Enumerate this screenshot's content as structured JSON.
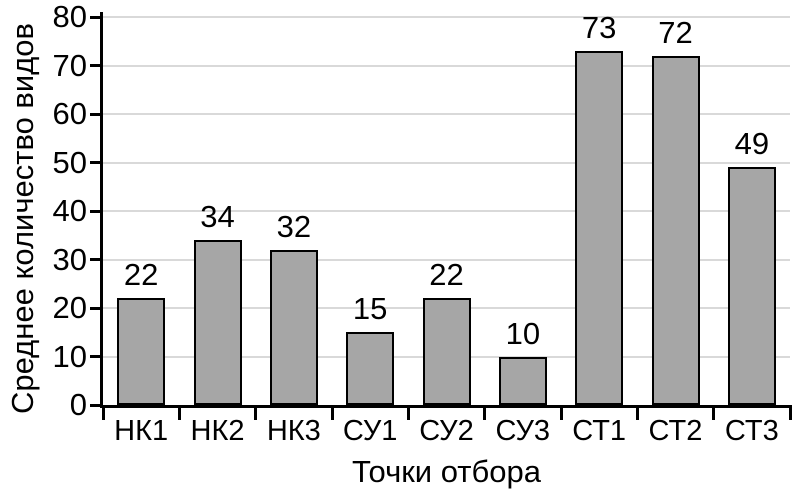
{
  "chart_data": {
    "type": "bar",
    "title": "",
    "categories": [
      "НК1",
      "НК2",
      "НК3",
      "СУ1",
      "СУ2",
      "СУ3",
      "СТ1",
      "СТ2",
      "СТ3"
    ],
    "values": [
      22,
      34,
      32,
      15,
      22,
      10,
      73,
      72,
      49
    ],
    "data_labels": [
      "22",
      "34",
      "32",
      "15",
      "22",
      "10",
      "73",
      "72",
      "49"
    ],
    "xlabel": "Точки отбора",
    "ylabel": "Среднее количество видов",
    "ylim": [
      0,
      80
    ],
    "yticks": [
      0,
      10,
      20,
      30,
      40,
      50,
      60,
      70,
      80
    ],
    "grid": "horizontal",
    "legend": "none",
    "bar_fill": "#a6a6a6",
    "bar_border": "#000000",
    "gridline_color": "#d9d9d9",
    "axis_color": "#000000",
    "text_color": "#000000",
    "background": "#ffffff"
  }
}
